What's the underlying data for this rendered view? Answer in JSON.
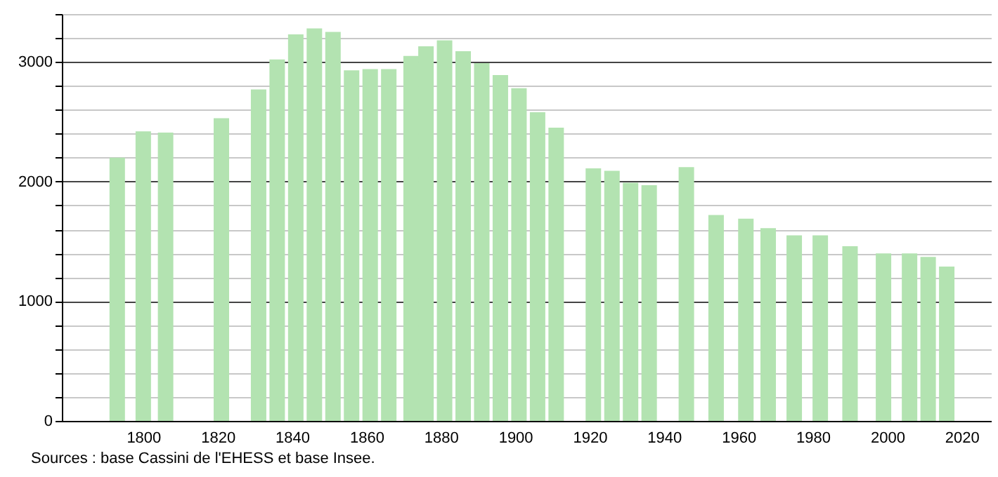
{
  "chart_data": {
    "type": "bar",
    "x": [
      1793,
      1800,
      1806,
      1821,
      1831,
      1836,
      1841,
      1846,
      1851,
      1856,
      1861,
      1866,
      1872,
      1876,
      1881,
      1886,
      1891,
      1896,
      1901,
      1906,
      1911,
      1921,
      1926,
      1931,
      1936,
      1946,
      1954,
      1962,
      1968,
      1975,
      1982,
      1990,
      1999,
      2006,
      2011,
      2016
    ],
    "values": [
      2200,
      2420,
      2410,
      2530,
      2770,
      3020,
      3230,
      3280,
      3250,
      2930,
      2940,
      2940,
      3050,
      3130,
      3180,
      3090,
      2990,
      2890,
      2780,
      2580,
      2450,
      2110,
      2090,
      1990,
      1970,
      2120,
      1720,
      1690,
      1610,
      1550,
      1550,
      1460,
      1400,
      1400,
      1370,
      1290
    ],
    "color": "#b3e3b1",
    "xlim": [
      1780,
      2026
    ],
    "xticks": [
      1800,
      1820,
      1840,
      1860,
      1880,
      1900,
      1920,
      1940,
      1960,
      1980,
      2000,
      2020
    ],
    "ylim": [
      0,
      3400
    ],
    "yticks": [
      0,
      {
        "value": 200,
        "label": null
      },
      {
        "value": 400,
        "label": null
      },
      {
        "value": 600,
        "label": null
      },
      {
        "value": 800,
        "label": null
      },
      1000,
      {
        "value": 1200,
        "label": null
      },
      {
        "value": 1400,
        "label": null
      },
      {
        "value": 1600,
        "label": null
      },
      {
        "value": 1800,
        "label": null
      },
      2000,
      {
        "value": 2200,
        "label": null
      },
      {
        "value": 2400,
        "label": null
      },
      {
        "value": 2600,
        "label": null
      },
      {
        "value": 2800,
        "label": null
      },
      3000,
      {
        "value": 3200,
        "label": null
      },
      {
        "value": 3400,
        "label": null
      }
    ],
    "grid": "y",
    "annotations": [
      "Sources : base Cassini de l'EHESS et base Insee."
    ]
  }
}
